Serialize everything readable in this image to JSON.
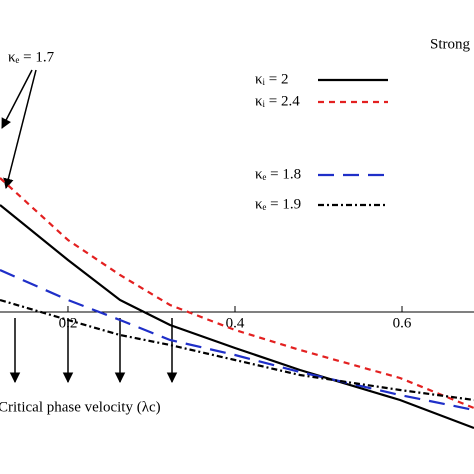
{
  "chart_data": {
    "type": "line",
    "annotations": [
      "κₑ = 1.7",
      "Strong",
      "Critical phase velocity (λc)"
    ],
    "x": [
      0.1186,
      0.2,
      0.2623,
      0.3222,
      0.4,
      0.4778,
      0.5976,
      0.6862
    ],
    "series": [
      {
        "name": "κᵢ = 2",
        "color": "#000000",
        "dash": "",
        "values": [
          1.07,
          0.52,
          0.12,
          -0.13,
          -0.36,
          -0.58,
          -0.88,
          -1.16
        ]
      },
      {
        "name": "κᵢ = 2.4",
        "color": "#e32020",
        "dash": "6 5",
        "values": [
          1.34,
          0.72,
          0.37,
          0.07,
          -0.18,
          -0.38,
          -0.66,
          -0.96
        ]
      },
      {
        "name": "κₑ = 1.8",
        "color": "#1f2fc8",
        "dash": "16 9",
        "values": [
          0.42,
          0.12,
          -0.08,
          -0.28,
          -0.43,
          -0.6,
          -0.83,
          -0.98
        ]
      },
      {
        "name": "κₑ = 1.9",
        "color": "#000000",
        "dash": "6 3 2 3",
        "values": [
          0.12,
          -0.08,
          -0.23,
          -0.33,
          -0.48,
          -0.63,
          -0.78,
          -0.88
        ]
      }
    ],
    "xlim": [
      0.1186,
      0.6862
    ],
    "ylim": [
      -1.62,
      3.12
    ],
    "xticks": [
      0.2,
      0.4,
      0.6
    ]
  }
}
